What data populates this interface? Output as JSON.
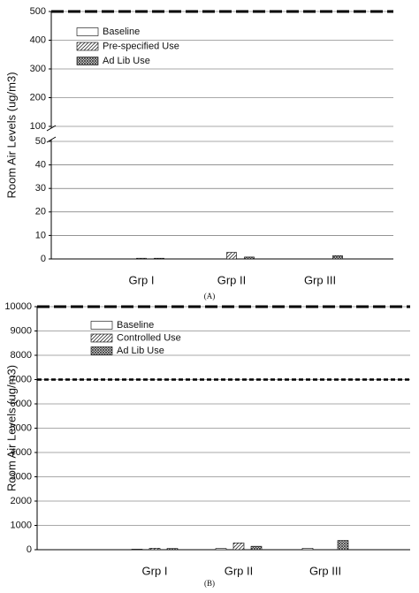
{
  "chart_data": [
    {
      "type": "bar",
      "panel_label": "(A)",
      "ylabel": "Room Air Levels (ug/m3)",
      "categories": [
        "Grp I",
        "Grp II",
        "Grp III"
      ],
      "series": [
        {
          "name": "Baseline",
          "color": "#ffffff",
          "pattern": "none",
          "values": [
            0,
            0,
            0
          ]
        },
        {
          "name": "Pre-specified Use",
          "color": "#ffffff",
          "pattern": "hatch",
          "values": [
            0.3,
            2.8,
            0
          ]
        },
        {
          "name": "Ad Lib Use",
          "color": "#ffffff",
          "pattern": "cross",
          "values": [
            0.3,
            0.8,
            1.4
          ]
        }
      ],
      "ylim": [
        0,
        500
      ],
      "axis_break": [
        50,
        100
      ],
      "yticks": [
        0,
        10,
        20,
        30,
        40,
        50,
        100,
        200,
        300,
        400,
        500
      ],
      "reference_lines": [
        500
      ],
      "grid": true,
      "legend": "upper-left"
    },
    {
      "type": "bar",
      "panel_label": "(B)",
      "ylabel": "Room Air Levels (ug/m3)",
      "categories": [
        "Grp I",
        "Grp II",
        "Grp III"
      ],
      "series": [
        {
          "name": "Baseline",
          "color": "#ffffff",
          "pattern": "none",
          "values": [
            20,
            50,
            60
          ]
        },
        {
          "name": "Controlled Use",
          "color": "#ffffff",
          "pattern": "hatch",
          "values": [
            60,
            280,
            0
          ]
        },
        {
          "name": "Ad Lib Use",
          "color": "#ffffff",
          "pattern": "cross",
          "values": [
            50,
            140,
            380
          ]
        }
      ],
      "ylim": [
        0,
        10000
      ],
      "yticks": [
        0,
        1000,
        2000,
        3000,
        4000,
        5000,
        6000,
        7000,
        8000,
        9000,
        10000
      ],
      "reference_lines": [
        10000,
        7000
      ],
      "grid": true,
      "legend": "upper-left"
    }
  ]
}
